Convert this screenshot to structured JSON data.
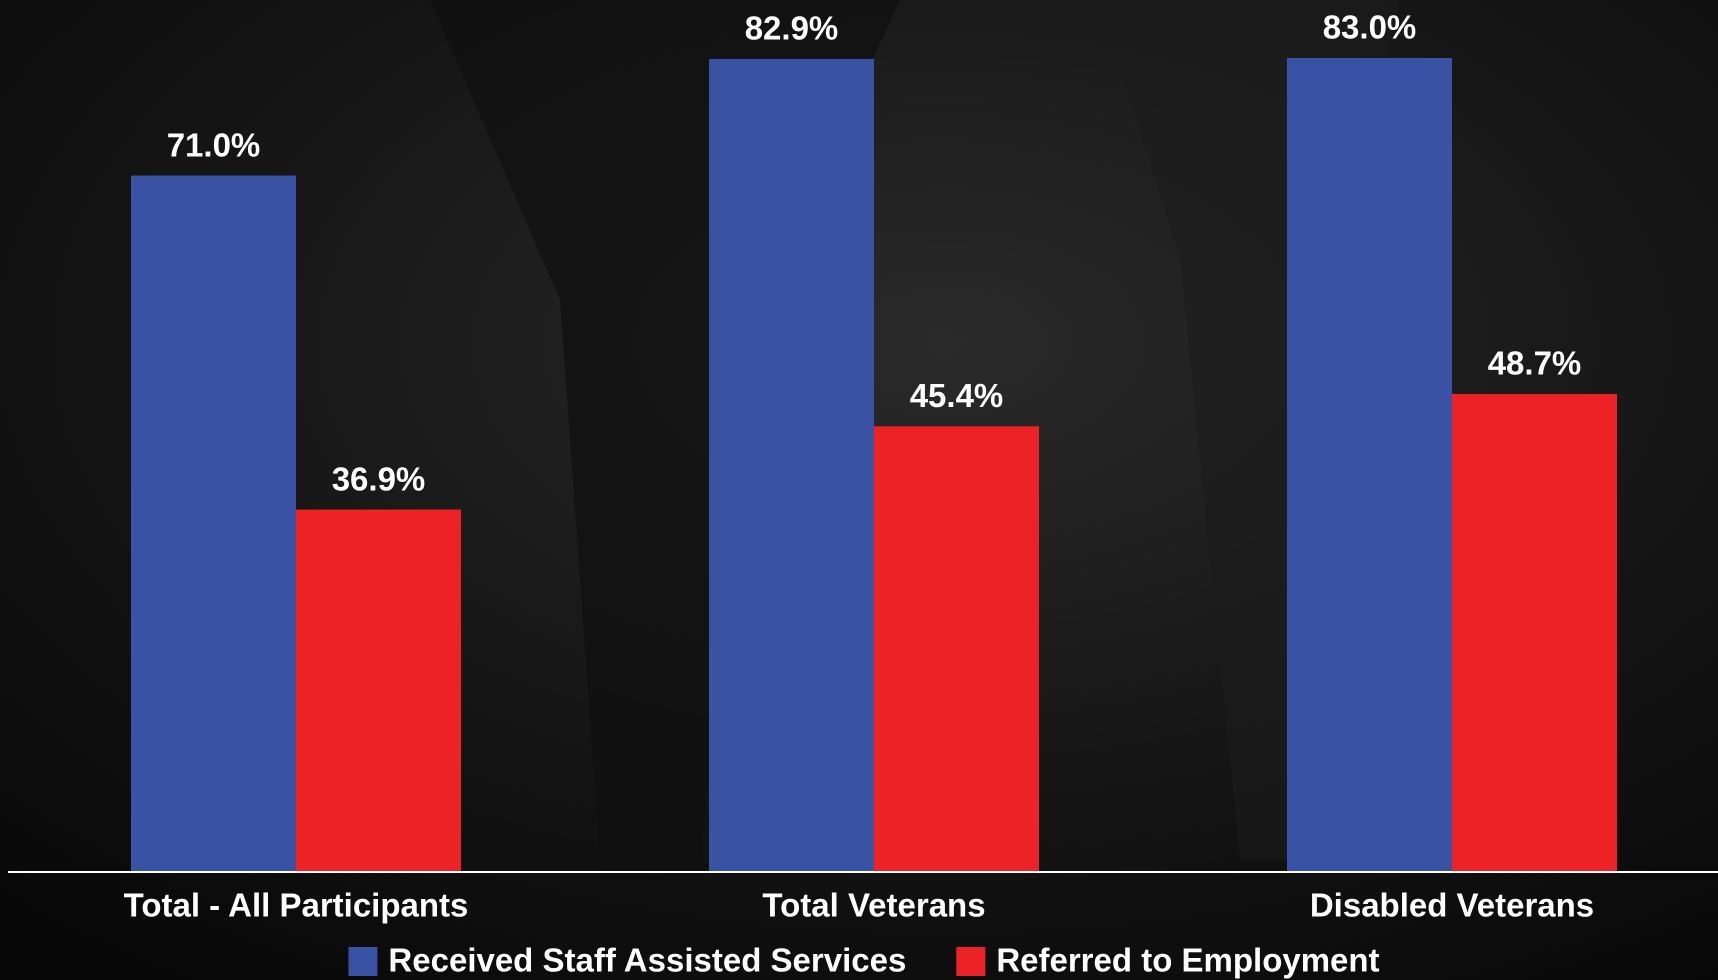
{
  "chart_data": {
    "type": "bar",
    "categories": [
      "Total - All Participants",
      "Total Veterans",
      "Disabled Veterans"
    ],
    "series": [
      {
        "name": "Received Staff Assisted Services",
        "color": "#3a52a4",
        "values": [
          71.0,
          82.9,
          83.0
        ],
        "value_labels": [
          "71.0%",
          "82.9%",
          "83.0%"
        ]
      },
      {
        "name": "Referred to Employment",
        "color": "#ec2227",
        "values": [
          36.9,
          45.4,
          48.7
        ],
        "value_labels": [
          "36.9%",
          "45.4%",
          "48.7%"
        ]
      }
    ]
  }
}
